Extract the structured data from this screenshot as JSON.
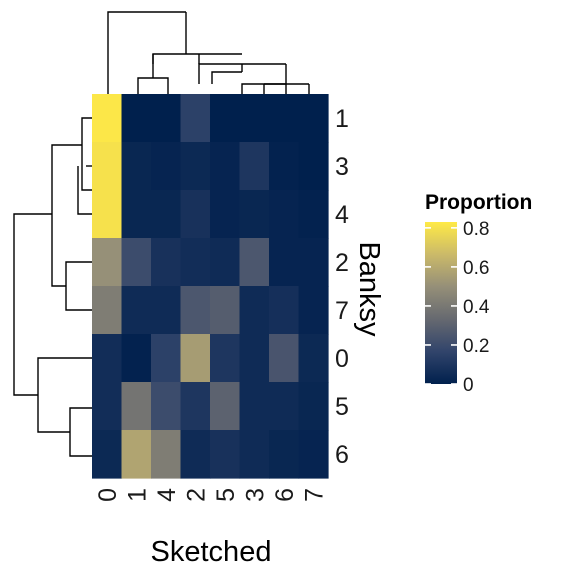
{
  "chart_data": {
    "type": "heatmap",
    "title": "",
    "xlabel": "Sketched",
    "ylabel": "Banksy",
    "x_categories": [
      "0",
      "1",
      "4",
      "2",
      "5",
      "3",
      "6",
      "7"
    ],
    "y_categories": [
      "1",
      "3",
      "4",
      "2",
      "7",
      "0",
      "5",
      "6"
    ],
    "values": [
      [
        0.82,
        0.0,
        0.0,
        0.15,
        0.0,
        0.0,
        0.0,
        0.0
      ],
      [
        0.8,
        0.03,
        0.02,
        0.04,
        0.02,
        0.1,
        0.01,
        0.0
      ],
      [
        0.8,
        0.03,
        0.03,
        0.08,
        0.02,
        0.03,
        0.02,
        0.01
      ],
      [
        0.5,
        0.2,
        0.08,
        0.06,
        0.05,
        0.25,
        0.02,
        0.02
      ],
      [
        0.42,
        0.05,
        0.05,
        0.25,
        0.28,
        0.05,
        0.07,
        0.02
      ],
      [
        0.06,
        0.01,
        0.15,
        0.55,
        0.1,
        0.05,
        0.24,
        0.04
      ],
      [
        0.06,
        0.38,
        0.2,
        0.1,
        0.3,
        0.05,
        0.05,
        0.03
      ],
      [
        0.04,
        0.58,
        0.42,
        0.05,
        0.08,
        0.05,
        0.03,
        0.02
      ]
    ],
    "legend": {
      "title": "Proportion",
      "placement": "right",
      "ticks": [
        {
          "value": 0.8,
          "label": "0.8"
        },
        {
          "value": 0.6,
          "label": "0.6"
        },
        {
          "value": 0.4,
          "label": "0.4"
        },
        {
          "value": 0.2,
          "label": "0.2"
        },
        {
          "value": 0.0,
          "label": "0"
        }
      ],
      "range": [
        0,
        0.83
      ]
    },
    "colormap": [
      "#00204d",
      "#31446b",
      "#666970",
      "#958f78",
      "#cbba69",
      "#ffea46"
    ],
    "column_dendrogram": "top",
    "row_dendrogram": "left",
    "grid": false
  }
}
